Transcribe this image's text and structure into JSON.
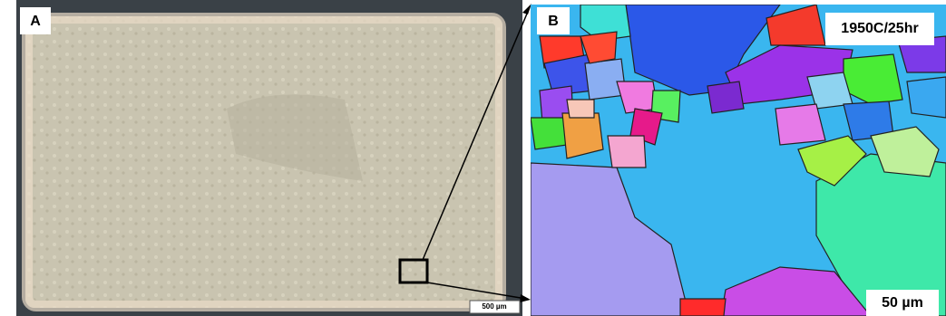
{
  "panel_a": {
    "label": "A",
    "scale_bar": "500 µm"
  },
  "panel_b": {
    "label": "B",
    "annotation": "1950C/25hr",
    "scale_bar": "50 µm"
  }
}
